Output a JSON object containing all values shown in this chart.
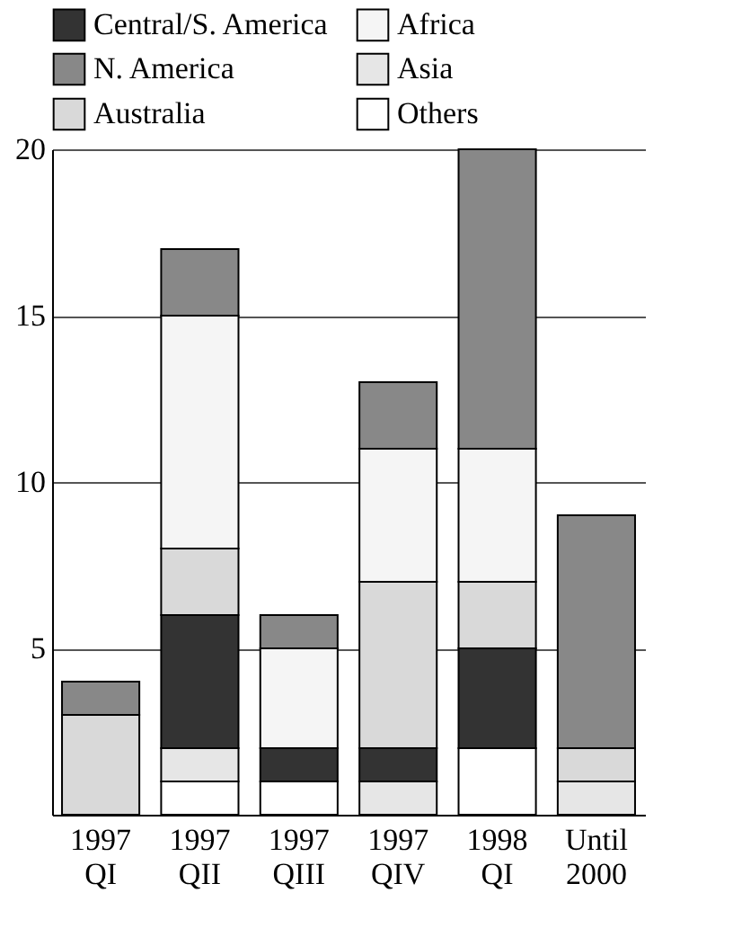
{
  "chart_data": {
    "type": "bar",
    "stacked": true,
    "categories": [
      "1997 QI",
      "1997 QII",
      "1997 QIII",
      "1997 QIV",
      "1998 QI",
      "Until 2000"
    ],
    "series": [
      {
        "name": "Others",
        "color": "#ffffff",
        "values": [
          0,
          1,
          1,
          0,
          2,
          0
        ]
      },
      {
        "name": "Asia",
        "color": "#e6e6e6",
        "values": [
          0,
          1,
          0,
          1,
          0,
          1
        ]
      },
      {
        "name": "Central/S. America",
        "color": "#333333",
        "values": [
          0,
          4,
          1,
          1,
          3,
          0
        ]
      },
      {
        "name": "Australia",
        "color": "#d9d9d9",
        "values": [
          3,
          2,
          0,
          5,
          2,
          1
        ]
      },
      {
        "name": "Africa",
        "color": "#f5f5f5",
        "values": [
          0,
          7,
          3,
          4,
          4,
          0
        ]
      },
      {
        "name": "N. America",
        "color": "#888888",
        "values": [
          1,
          2,
          1,
          2,
          9,
          7
        ]
      }
    ],
    "ylim": [
      0,
      20
    ],
    "yticks": [
      5,
      10,
      15,
      20
    ],
    "grid": "y",
    "legend": "top"
  }
}
